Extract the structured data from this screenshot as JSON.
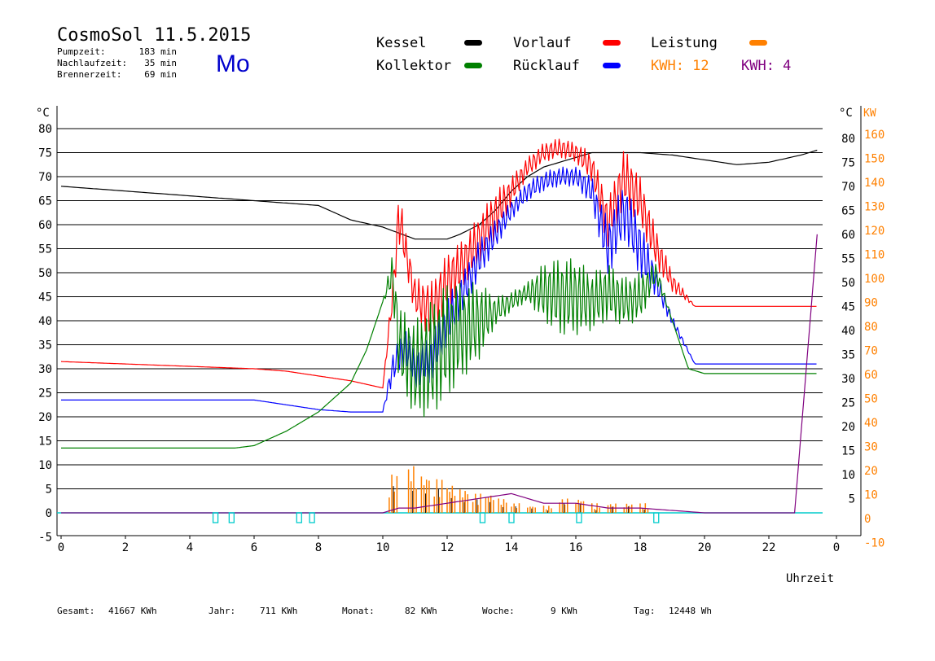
{
  "header": {
    "title": "CosmoSol 11.5.2015",
    "day": "Mo",
    "stats": [
      {
        "label": "Pumpzeit:",
        "value": "183 min"
      },
      {
        "label": "Nachlaufzeit:",
        "value": "35 min"
      },
      {
        "label": "Brennerzeit:",
        "value": "69 min"
      }
    ]
  },
  "legend": {
    "items": [
      {
        "label": "Kessel",
        "color": "#000000"
      },
      {
        "label": "Vorlauf",
        "color": "#ff0000"
      },
      {
        "label": "Leistung",
        "color": "#ff8000"
      },
      {
        "label": "Kollektor",
        "color": "#008000"
      },
      {
        "label": "Rücklauf",
        "color": "#0000ff"
      }
    ],
    "kwh_orange": "KWH: 12",
    "kwh_orange_color": "#ff8000",
    "kwh_purple": "KWH: 4",
    "kwh_purple_color": "#800080"
  },
  "footer": {
    "items": [
      {
        "label": "Gesamt:",
        "value": "41667 KWh"
      },
      {
        "label": "Jahr:",
        "value": "711 KWh"
      },
      {
        "label": "Monat:",
        "value": "82 KWh"
      },
      {
        "label": "Woche:",
        "value": "9 KWh"
      },
      {
        "label": "Tag:",
        "value": "12448 Wh"
      }
    ]
  },
  "chart_data": {
    "type": "line",
    "xlabel": "Uhrzeit",
    "ylabel_left": "°C",
    "ylabel_right_temp": "°C",
    "ylabel_right_power": "KW",
    "xlim": [
      0,
      24
    ],
    "ylim": [
      -5,
      80
    ],
    "x_ticks": [
      0,
      2,
      4,
      6,
      8,
      10,
      12,
      14,
      16,
      18,
      20,
      22
    ],
    "x_tick_labels": [
      "0",
      "2",
      "4",
      "6",
      "8",
      "10",
      "12",
      "14",
      "16",
      "18",
      "20",
      "22",
      "0"
    ],
    "y_ticks_left": [
      -5,
      0,
      5,
      10,
      15,
      20,
      25,
      30,
      35,
      40,
      45,
      50,
      55,
      60,
      65,
      70,
      75,
      80
    ],
    "y_ticks_right_temp": [
      5,
      10,
      15,
      20,
      25,
      30,
      35,
      40,
      45,
      50,
      55,
      60,
      65,
      70,
      75,
      80
    ],
    "y_ticks_right_power": [
      -10,
      0,
      10,
      20,
      30,
      40,
      50,
      60,
      70,
      80,
      90,
      100,
      110,
      120,
      130,
      140,
      150,
      160
    ],
    "grid": "horizontal",
    "series": [
      {
        "name": "Kessel",
        "color": "#000000",
        "style": "smooth",
        "x": [
          0,
          2,
          4,
          6,
          8,
          9,
          10,
          10.6,
          11,
          12,
          12.4,
          13,
          13.5,
          14,
          14.5,
          15,
          15.5,
          16,
          16.5,
          17,
          17.5,
          18,
          19,
          20,
          21,
          22,
          23,
          23.5
        ],
        "y": [
          68,
          67,
          66,
          65,
          64,
          61,
          59.5,
          58,
          57,
          57,
          58,
          60,
          63,
          67,
          70,
          72,
          73,
          74,
          75,
          75,
          75,
          75,
          74.5,
          73.5,
          72.5,
          73,
          74.5,
          75.5
        ]
      },
      {
        "name": "Vorlauf",
        "color": "#ff0000",
        "style": "spiky",
        "x": [
          0,
          2,
          4,
          6,
          7,
          8,
          9,
          10,
          10.3,
          10.5,
          10.7,
          11,
          11.5,
          12,
          12.5,
          13,
          13.5,
          14,
          14.5,
          15,
          15.5,
          16,
          16.5,
          17,
          17.5,
          18,
          18.5,
          19,
          19.7,
          20,
          21,
          22,
          23,
          23.5
        ],
        "y": [
          31.5,
          31,
          30.5,
          30,
          29.5,
          28.5,
          27.5,
          26,
          45,
          62,
          55,
          45,
          42,
          48,
          52,
          57,
          62,
          67,
          72,
          75,
          76,
          75,
          72,
          60,
          70,
          65,
          55,
          48,
          43,
          43,
          43,
          43,
          43,
          43
        ],
        "amp": [
          0,
          0,
          0,
          0,
          0,
          0,
          0,
          0,
          3,
          6,
          4,
          4,
          6,
          6,
          5,
          5,
          5,
          3,
          2,
          2,
          2,
          2,
          3,
          5,
          6,
          5,
          4,
          2,
          0,
          0,
          0,
          0,
          0,
          0
        ]
      },
      {
        "name": "Rücklauf",
        "color": "#0000ff",
        "style": "spiky",
        "x": [
          0,
          2,
          4,
          6,
          7,
          8,
          9,
          10,
          10.3,
          10.7,
          11,
          11.5,
          12,
          12.5,
          13,
          13.5,
          14,
          14.5,
          15,
          15.5,
          16,
          16.5,
          17,
          17.5,
          18,
          18.5,
          19,
          19.7,
          20,
          21,
          22,
          23,
          23.5
        ],
        "y": [
          23.5,
          23.5,
          23.5,
          23.5,
          22.5,
          21.5,
          21,
          21,
          30,
          35,
          30,
          32,
          40,
          46,
          53,
          58,
          63,
          67,
          69,
          70,
          70,
          67,
          55,
          63,
          55,
          48,
          40,
          31,
          31,
          31,
          31,
          31,
          31
        ],
        "amp": [
          0,
          0,
          0,
          0,
          0,
          0,
          0,
          0,
          3,
          4,
          4,
          5,
          5,
          4,
          4,
          3,
          2,
          2,
          2,
          2,
          2,
          3,
          6,
          6,
          6,
          3,
          1,
          0,
          0,
          0,
          0,
          0,
          0
        ]
      },
      {
        "name": "Kollektor",
        "color": "#008000",
        "style": "spiky",
        "x": [
          0,
          1,
          2,
          3,
          4,
          5,
          5.4,
          6,
          7,
          8,
          9,
          9.5,
          10,
          10.3,
          10.5,
          11,
          11.5,
          12,
          12.5,
          13,
          13.5,
          14,
          14.5,
          15,
          15.5,
          16,
          16.5,
          17,
          17.5,
          18,
          18.5,
          19,
          19.5,
          20,
          21,
          22,
          23,
          23.5
        ],
        "y": [
          13.5,
          13.5,
          13.5,
          13.5,
          13.5,
          13.5,
          13.5,
          14,
          17,
          21,
          27,
          34,
          44,
          50,
          35,
          30,
          32,
          36,
          38,
          40,
          42,
          44,
          46,
          46,
          45,
          45,
          44,
          46,
          44,
          45,
          50,
          40,
          30,
          29,
          29,
          29,
          29,
          29
        ],
        "amp": [
          0,
          0,
          0,
          0,
          0,
          0,
          0,
          0,
          0,
          0,
          0,
          0,
          0,
          4,
          8,
          10,
          12,
          12,
          10,
          8,
          3,
          2,
          2,
          6,
          8,
          8,
          6,
          6,
          5,
          5,
          2,
          0,
          0,
          0,
          0,
          0,
          0,
          0
        ]
      },
      {
        "name": "Leistung",
        "color": "#ff8000",
        "style": "bars",
        "axis": "power",
        "x": [
          10.2,
          10.8,
          11.2,
          11.6,
          12,
          12.4,
          12.8,
          13.2,
          13.6,
          14,
          14.5,
          15,
          15.5,
          16,
          16.5,
          17,
          17.5,
          18
        ],
        "y": [
          16,
          20,
          16,
          14,
          12,
          10,
          8,
          8,
          6,
          4,
          3,
          3,
          6,
          6,
          4,
          4,
          4,
          4
        ]
      },
      {
        "name": "KWH 4",
        "color": "#800080",
        "style": "polyline",
        "x": [
          0,
          10,
          10.5,
          11,
          12,
          13,
          14,
          14.5,
          15,
          16,
          17,
          18,
          20,
          22,
          22.8,
          23.5
        ],
        "y": [
          0,
          0,
          1,
          1,
          2,
          3,
          4,
          3,
          2,
          2,
          1,
          1,
          0,
          0,
          0,
          58
        ]
      }
    ],
    "burner_markers_x": [
      4.8,
      5.3,
      7.4,
      7.8,
      13.1,
      14.0,
      16.1,
      18.5
    ]
  }
}
